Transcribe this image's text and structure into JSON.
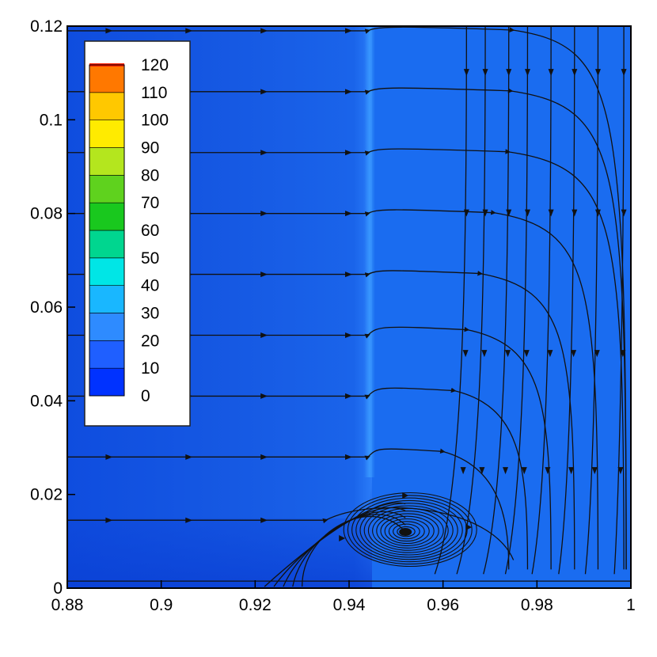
{
  "chart_data": {
    "type": "heatmap",
    "title": "",
    "xlabel": "",
    "ylabel": "",
    "xlim": [
      0.88,
      1.0
    ],
    "ylim": [
      0,
      0.12
    ],
    "x_ticks": [
      "0.88",
      "0.9",
      "0.92",
      "0.94",
      "0.96",
      "0.98",
      "1"
    ],
    "y_ticks": [
      "0",
      "0.02",
      "0.04",
      "0.06",
      "0.08",
      "0.1",
      "0.12"
    ],
    "grid": false,
    "legend_placement": "top-left",
    "colorbar": {
      "min": 0,
      "max": 120,
      "levels": [
        "0",
        "10",
        "20",
        "30",
        "40",
        "50",
        "60",
        "70",
        "80",
        "90",
        "100",
        "110",
        "120"
      ],
      "colors": [
        "#0032ff",
        "#1f5fff",
        "#2e8bff",
        "#19b7ff",
        "#00e6e6",
        "#00d68f",
        "#19c81e",
        "#5fd21e",
        "#b4e61e",
        "#ffeb00",
        "#ffc800",
        "#ff7800",
        "#ff1e00"
      ]
    },
    "field_colors": {
      "background": "#1a6cf0",
      "left_band": "#1659e3",
      "bottom_band": "#0d45d8",
      "ridge": "#3a9aff"
    },
    "vortex_center": {
      "x": 0.952,
      "y": 0.012
    },
    "streamlines_horizontal_y": [
      0.0015,
      0.0145,
      0.028,
      0.041,
      0.054,
      0.067,
      0.08,
      0.093,
      0.106,
      0.119
    ],
    "streamlines_vertical_x": [
      0.9985,
      0.993,
      0.988,
      0.983,
      0.978,
      0.974,
      0.969,
      0.965
    ]
  }
}
